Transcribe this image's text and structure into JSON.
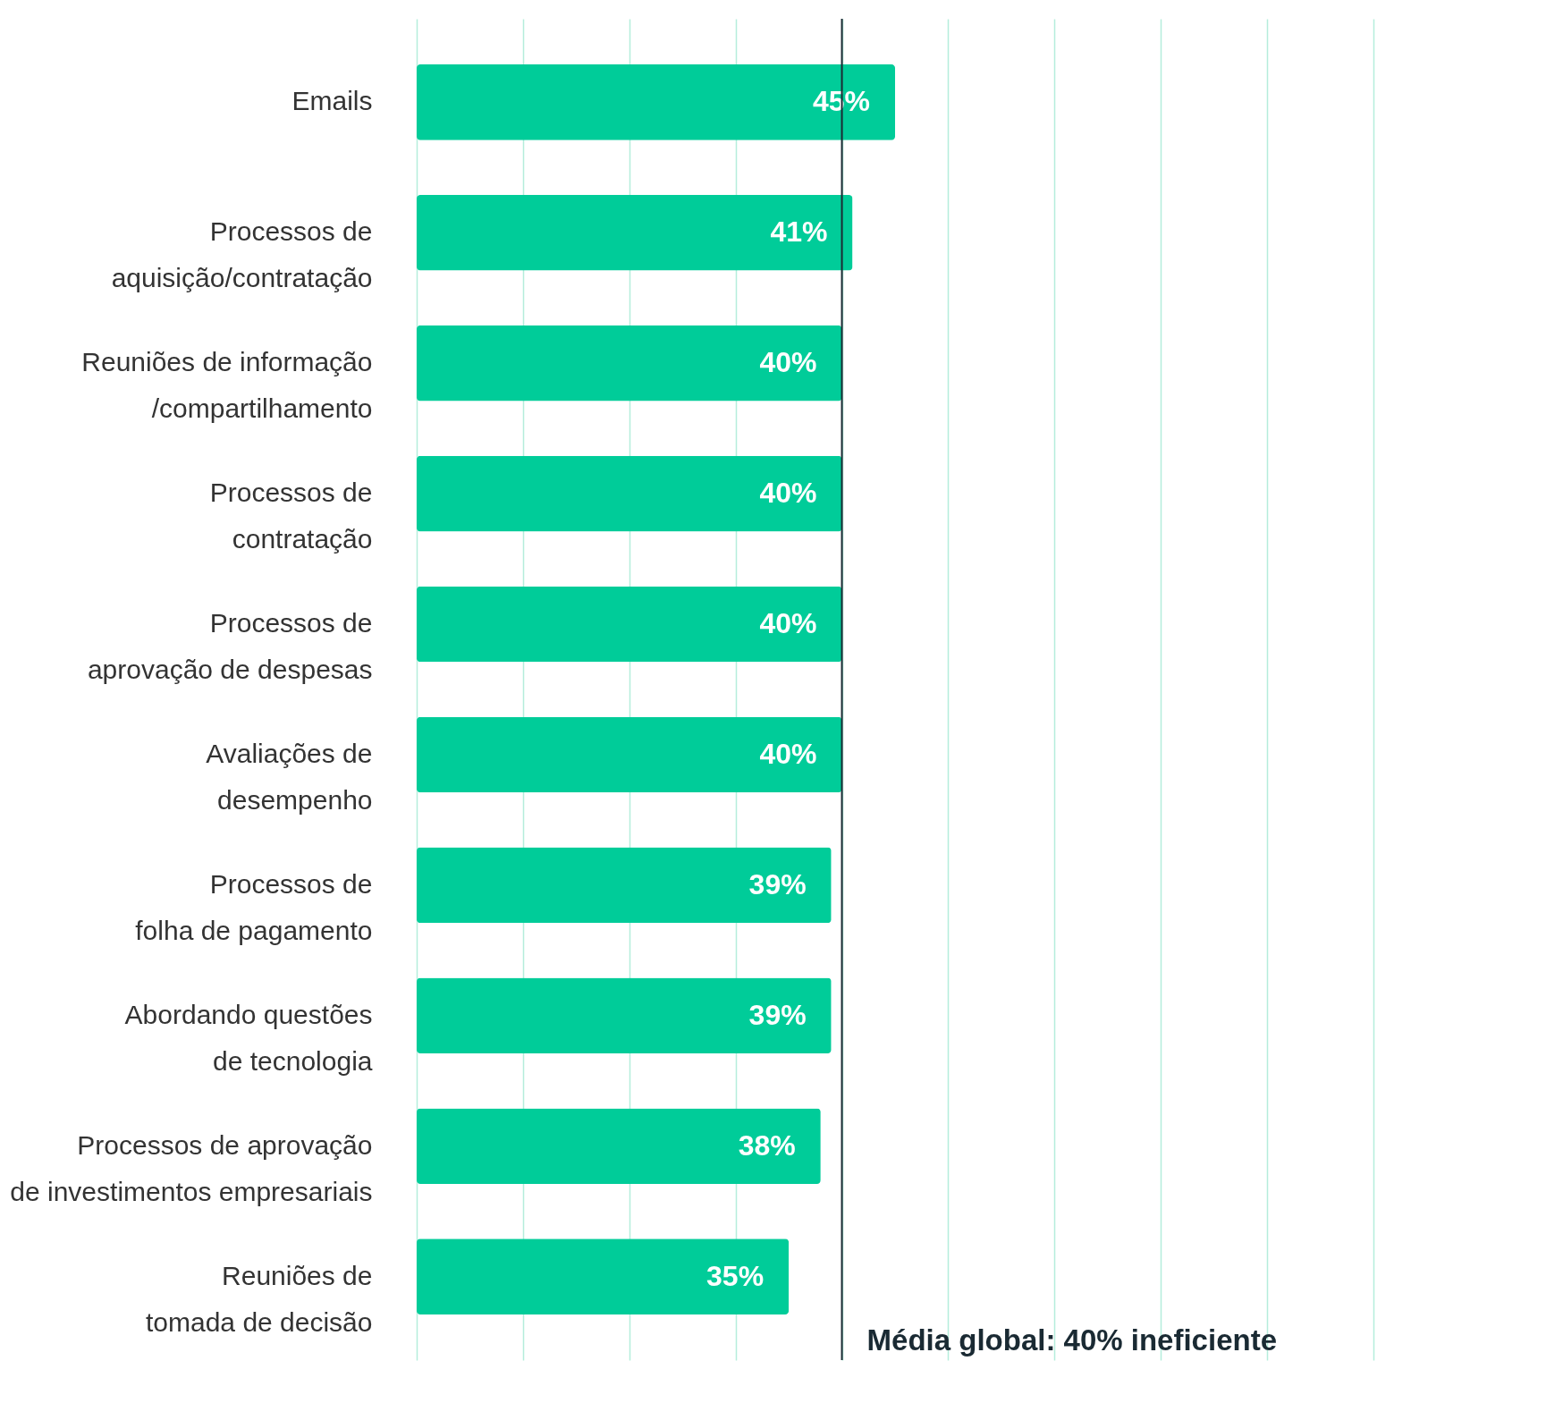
{
  "chart_data": {
    "type": "bar",
    "orientation": "horizontal",
    "categories": [
      "Emails",
      "Processos de\naquisição/contratação",
      "Reuniões de informação\n/compartilhamento",
      "Processos de\ncontratação",
      "Processos de\naprovação de despesas",
      "Avaliações de\ndesempenho",
      "Processos de\nfolha de pagamento",
      "Abordando questões\nde tecnologia",
      "Processos de aprovação\nde investimentos empresariais",
      "Reuniões de\ntomada de decisão"
    ],
    "values": [
      45,
      41,
      40,
      40,
      40,
      40,
      39,
      39,
      38,
      35
    ],
    "value_labels": [
      "45%",
      "41%",
      "40%",
      "40%",
      "40%",
      "40%",
      "39%",
      "39%",
      "38%",
      "35%"
    ],
    "color": "#00cc99",
    "xlim": [
      0,
      90
    ],
    "xticks": [
      {
        "value": 0,
        "label": null
      },
      {
        "value": 10,
        "label": null
      },
      {
        "value": 20,
        "label": null
      },
      {
        "value": 30,
        "label": null
      },
      {
        "value": 40,
        "label": null
      },
      {
        "value": 50,
        "label": null
      },
      {
        "value": 60,
        "label": null
      },
      {
        "value": 70,
        "label": null
      },
      {
        "value": 80,
        "label": null
      },
      {
        "value": 90,
        "label": null
      }
    ],
    "grid": "x",
    "tick_labels": "y",
    "ref_lines": [
      {
        "axis": "x",
        "value": 40,
        "label": "Média global: 40% ineficiente",
        "color": "#1a2a33"
      }
    ]
  }
}
